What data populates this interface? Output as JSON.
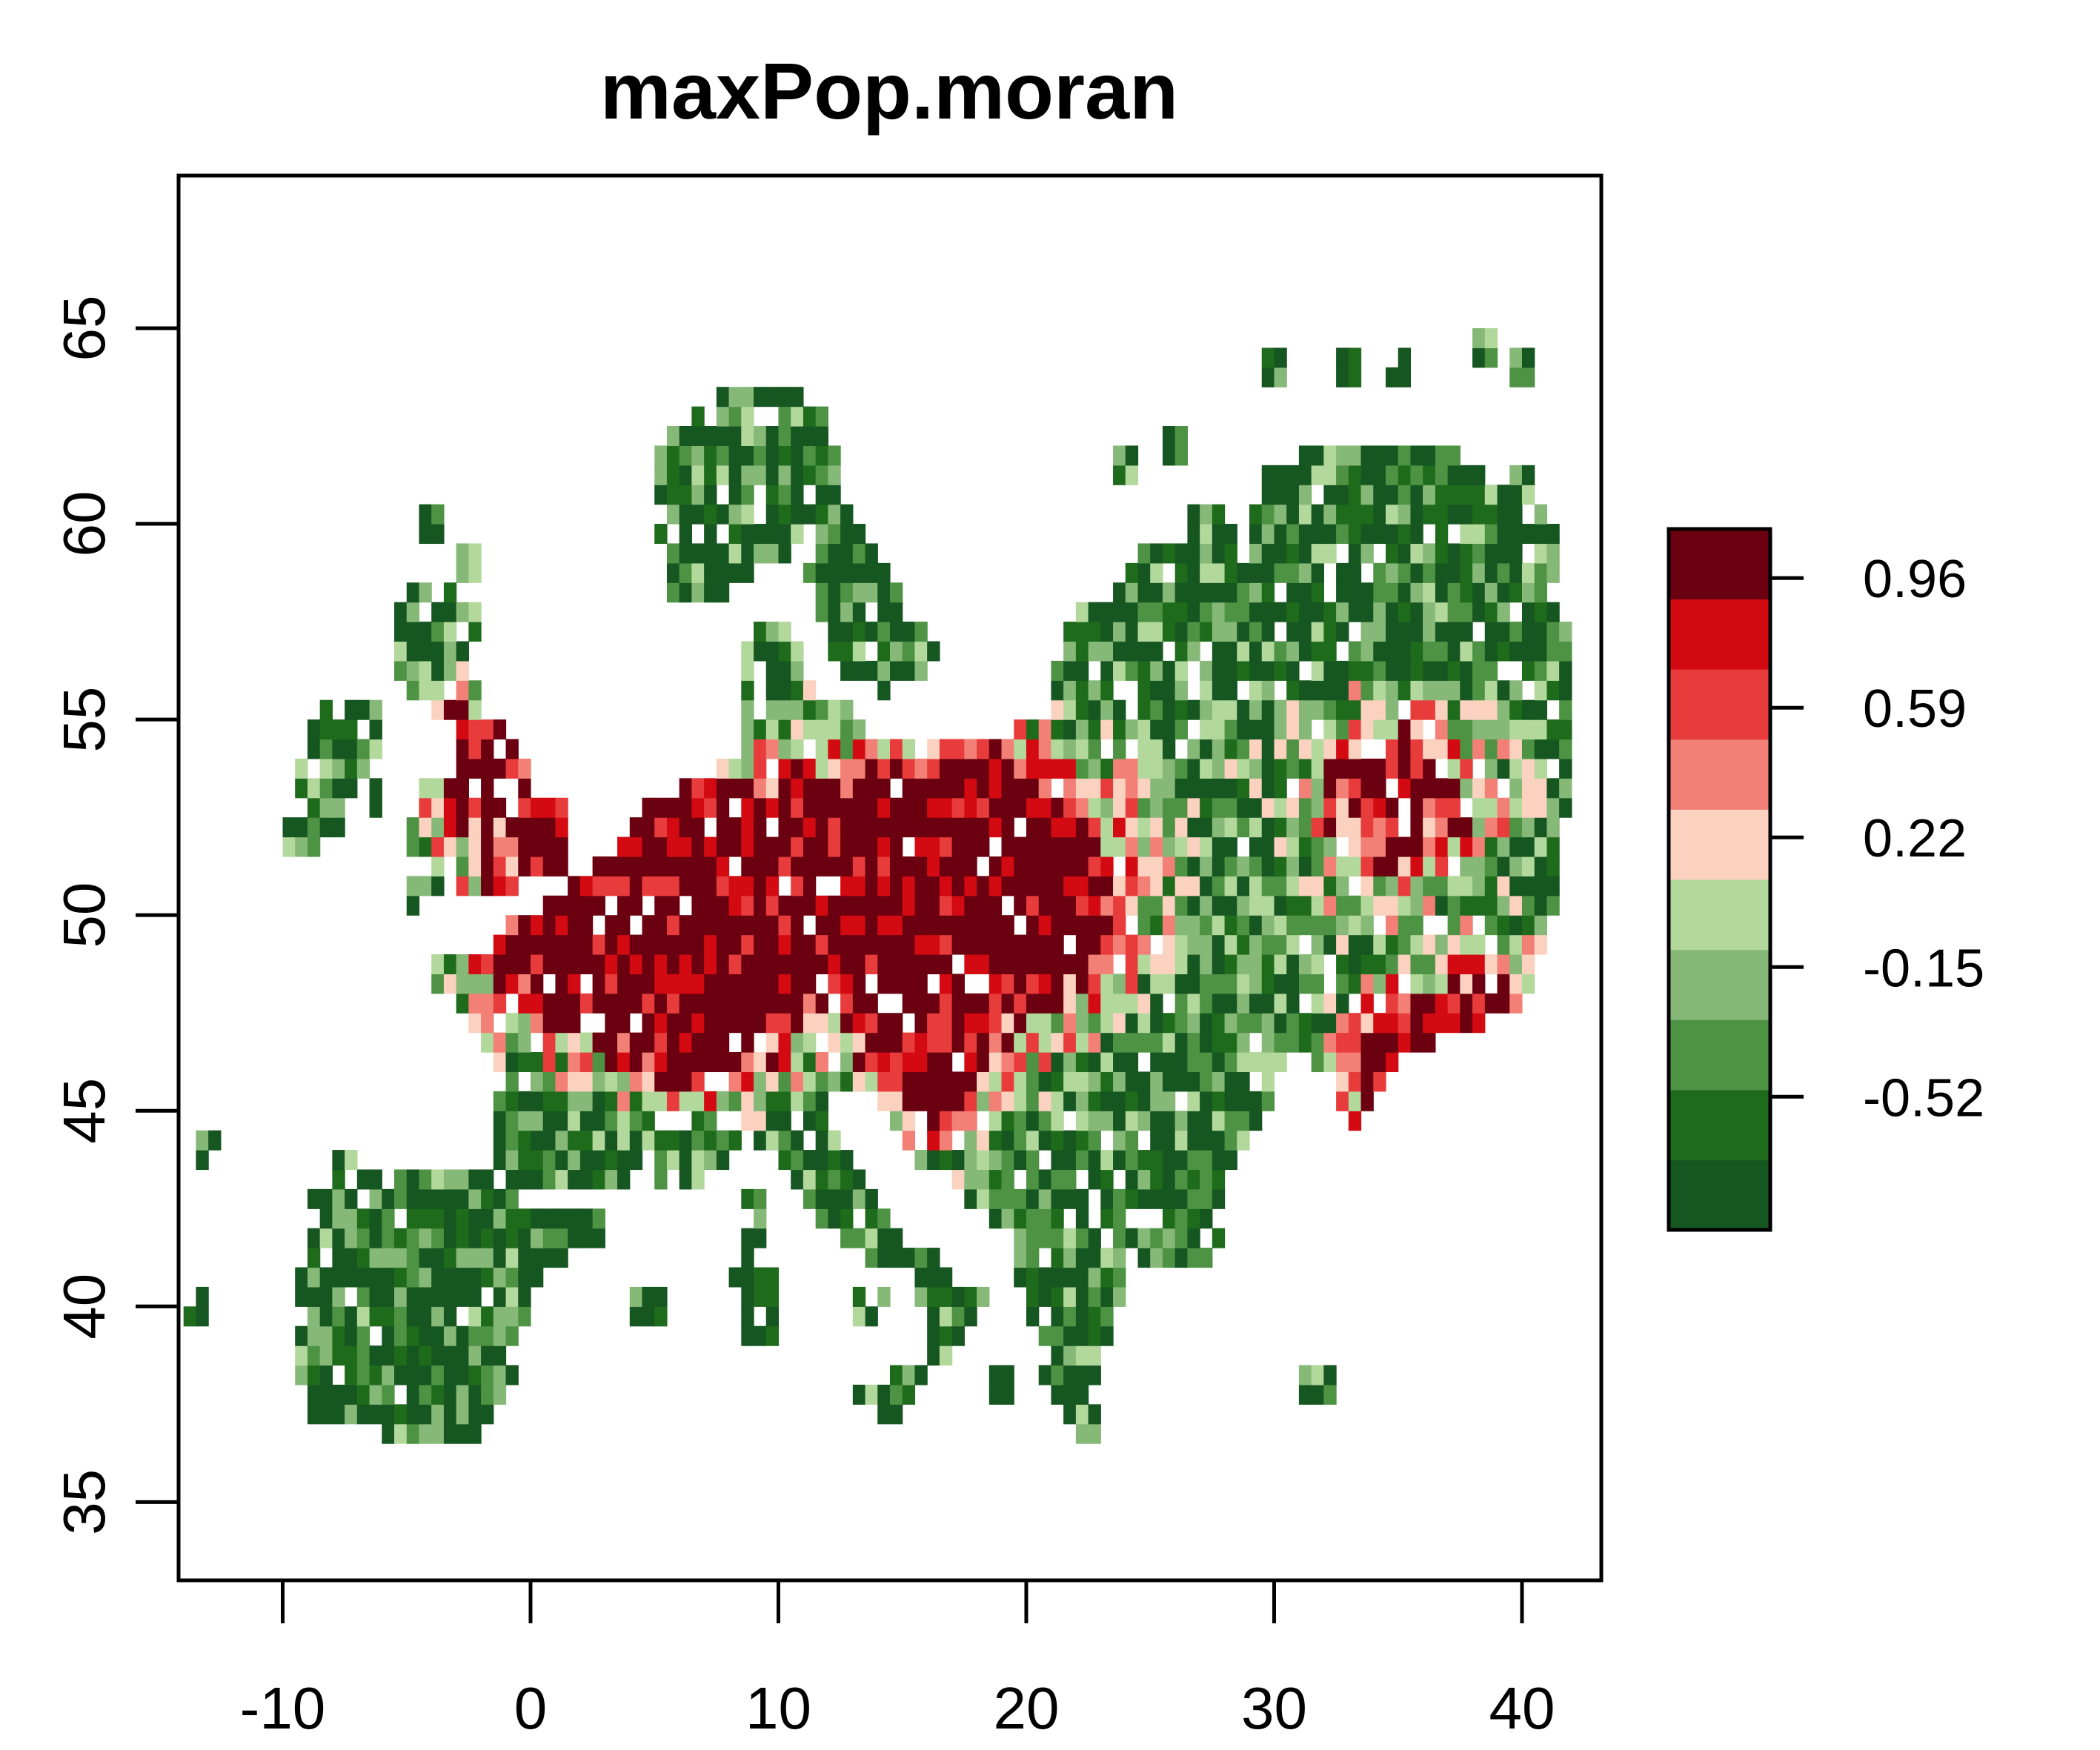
{
  "map": {
    "title": "maxPop.moran",
    "x_ticks": [
      "-10",
      "0",
      "10",
      "20",
      "30",
      "40"
    ],
    "x_tick_values": [
      -10,
      0,
      10,
      20,
      30,
      40
    ],
    "y_ticks": [
      "35",
      "40",
      "45",
      "50",
      "55",
      "60",
      "65"
    ],
    "y_tick_values": [
      35,
      40,
      45,
      50,
      55,
      60,
      65
    ],
    "xlim": [
      -14.2,
      43.2
    ],
    "ylim": [
      33.0,
      68.9
    ],
    "legend": {
      "labels": [
        "0.96",
        "0.59",
        "0.22",
        "-0.15",
        "-0.52"
      ],
      "values": [
        0.96,
        0.59,
        0.22,
        -0.15,
        -0.52
      ],
      "range": [
        -0.9,
        1.1
      ]
    },
    "colors": {
      "scale": [
        "#165620",
        "#1f6b1c",
        "#4e9344",
        "#86b878",
        "#b3d89c",
        "#fbd1c0",
        "#f28076",
        "#e83c3c",
        "#d30a11",
        "#6b0010"
      ],
      "frame": "#000000",
      "background": "#ffffff"
    }
  }
}
